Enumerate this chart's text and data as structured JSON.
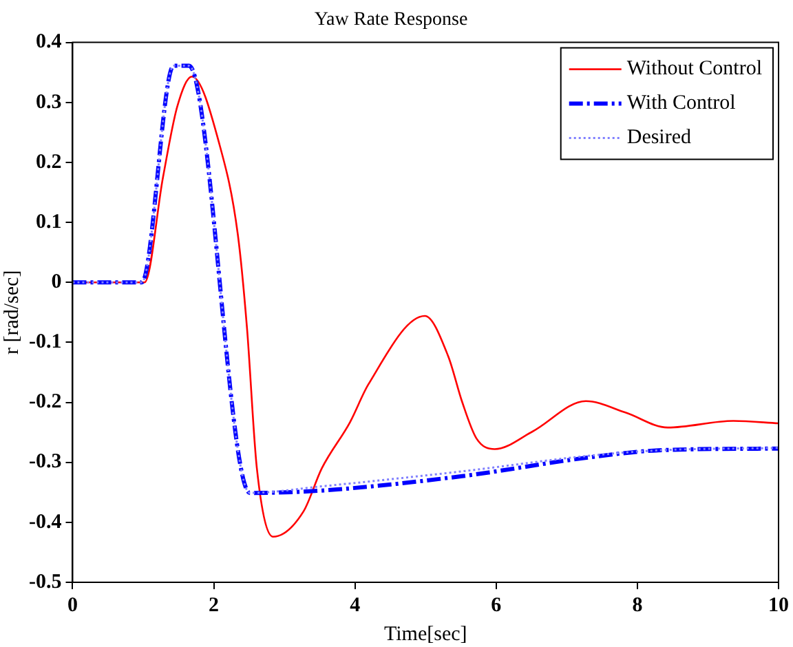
{
  "chart_data": {
    "type": "line",
    "title": "Yaw Rate Response",
    "xlabel": "Time[sec]",
    "ylabel": "r [rad/sec]",
    "xlim": [
      0,
      10
    ],
    "xticks": [
      0,
      2,
      4,
      6,
      8,
      10
    ],
    "ylim": [
      -0.5,
      0.4
    ],
    "yticks": [
      -0.5,
      -0.4,
      -0.3,
      -0.2,
      -0.1,
      0,
      0.1,
      0.2,
      0.3,
      0.4
    ],
    "grid": false,
    "legend": "top right",
    "marker": "none",
    "series": [
      {
        "name": "Without Control",
        "color": "#ff0000",
        "line_style": "solid",
        "x": [
          0,
          1.02,
          1.28,
          1.48,
          1.69,
          2.08,
          2.34,
          2.47,
          2.61,
          2.84,
          3.27,
          3.53,
          3.93,
          4.19,
          4.99,
          5.32,
          5.52,
          5.72,
          5.98,
          6.51,
          7.27,
          7.83,
          8.43,
          9.36,
          10
        ],
        "values": [
          0,
          0,
          0.175,
          0.292,
          0.343,
          0.23,
          0.08,
          -0.076,
          -0.31,
          -0.424,
          -0.382,
          -0.31,
          -0.233,
          -0.17,
          -0.056,
          -0.123,
          -0.2,
          -0.26,
          -0.278,
          -0.249,
          -0.198,
          -0.217,
          -0.242,
          -0.231,
          -0.235
        ]
      },
      {
        "name": "With Control",
        "color": "#0000ff",
        "line_style": "dashdot",
        "x": [
          0,
          0.98,
          1.43,
          1.65,
          2.51,
          3.53,
          5.52,
          7.24,
          8.3,
          10
        ],
        "values": [
          0,
          0,
          0.361,
          0.361,
          -0.351,
          -0.347,
          -0.323,
          -0.293,
          -0.28,
          -0.277
        ]
      },
      {
        "name": "Desired",
        "color": "#8080ff",
        "line_style": "dotted",
        "x": [
          0,
          0.98,
          1.43,
          1.65,
          2.51,
          3.53,
          5.52,
          7.24,
          8.3,
          10
        ],
        "values": [
          0,
          0,
          0.361,
          0.361,
          -0.351,
          -0.34,
          -0.315,
          -0.29,
          -0.28,
          -0.276
        ]
      }
    ]
  }
}
